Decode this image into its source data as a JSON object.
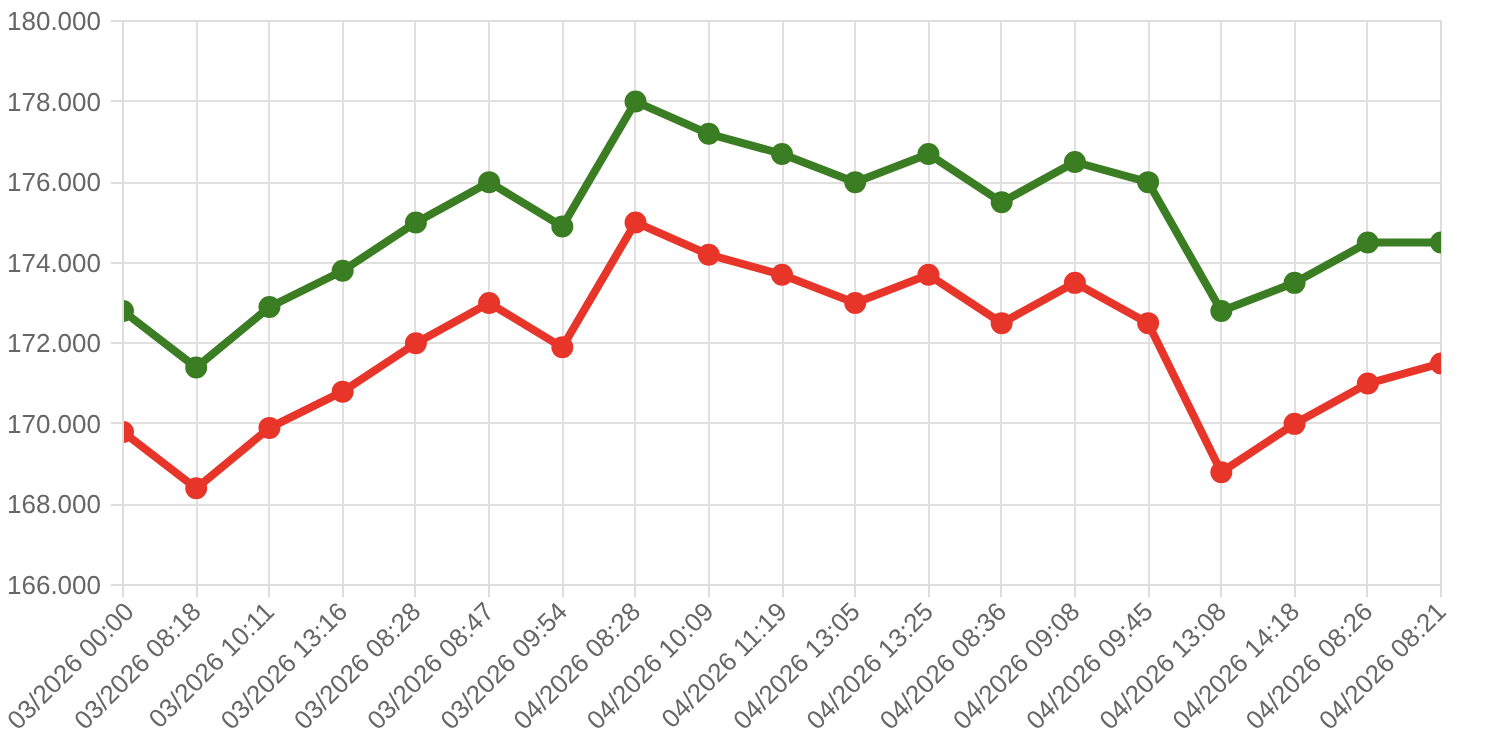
{
  "chart_data": {
    "type": "line",
    "categories": [
      "03/2026 00:00",
      "03/2026 08:18",
      "03/2026 10:11",
      "03/2026 13:16",
      "03/2026 08:28",
      "03/2026 08:47",
      "03/2026 09:54",
      "04/2026 08:28",
      "04/2026 10:09",
      "04/2026 11:19",
      "04/2026 13:05",
      "04/2026 13:25",
      "04/2026 08:36",
      "04/2026 09:08",
      "04/2026 09:45",
      "04/2026 13:08",
      "04/2026 14:18",
      "04/2026 08:26",
      "04/2026 08:21"
    ],
    "series": [
      {
        "color": "#3a7d22",
        "values": [
          172.8,
          171.4,
          172.9,
          173.8,
          175.0,
          176.0,
          174.9,
          178.0,
          177.2,
          176.7,
          176.0,
          176.7,
          175.5,
          176.5,
          176.0,
          172.8,
          173.5,
          174.5,
          174.5
        ]
      },
      {
        "color": "#e8352a",
        "values": [
          169.8,
          168.4,
          169.9,
          170.8,
          172.0,
          173.0,
          171.9,
          175.0,
          174.2,
          173.7,
          173.0,
          173.7,
          172.5,
          173.5,
          172.5,
          168.8,
          170.0,
          171.0,
          171.5
        ]
      }
    ],
    "ylim": [
      166,
      180
    ],
    "yticks": [
      {
        "value": 166,
        "label": "166.000"
      },
      {
        "value": 168,
        "label": "168.000"
      },
      {
        "value": 170,
        "label": "170.000"
      },
      {
        "value": 172,
        "label": "172.000"
      },
      {
        "value": 174,
        "label": "174.000"
      },
      {
        "value": 176,
        "label": "176.000"
      },
      {
        "value": 178,
        "label": "178.000"
      },
      {
        "value": 180,
        "label": "180.000"
      }
    ],
    "grid": true,
    "marker": "circle",
    "line_style": "solid"
  }
}
